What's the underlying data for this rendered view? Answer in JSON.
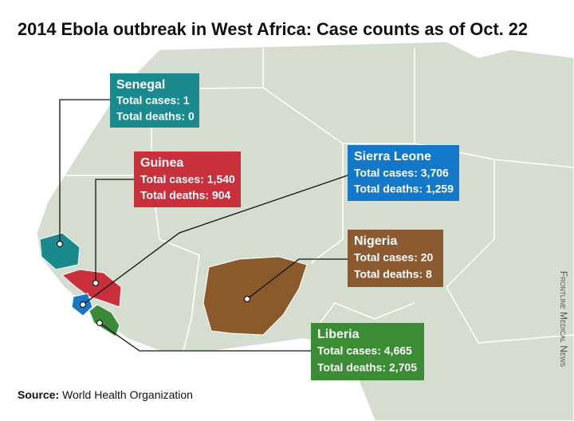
{
  "title": "2014 Ebola outbreak in West Africa: Case counts as of Oct. 22",
  "countries": [
    {
      "name": "Senegal",
      "cases": "Total cases: 1",
      "deaths": "Total deaths: 0"
    },
    {
      "name": "Guinea",
      "cases": "Total cases: 1,540",
      "deaths": "Total deaths: 904"
    },
    {
      "name": "Sierra Leone",
      "cases": "Total cases: 3,706",
      "deaths": "Total deaths: 1,259"
    },
    {
      "name": "Nigeria",
      "cases": "Total cases: 20",
      "deaths": "Total deaths: 8"
    },
    {
      "name": "Liberia",
      "cases": "Total cases: 4,665",
      "deaths": "Total deaths: 2,705"
    }
  ],
  "source": {
    "label": "Source:",
    "text": "World Health Organization"
  },
  "credit": "Frontline Medical News"
}
